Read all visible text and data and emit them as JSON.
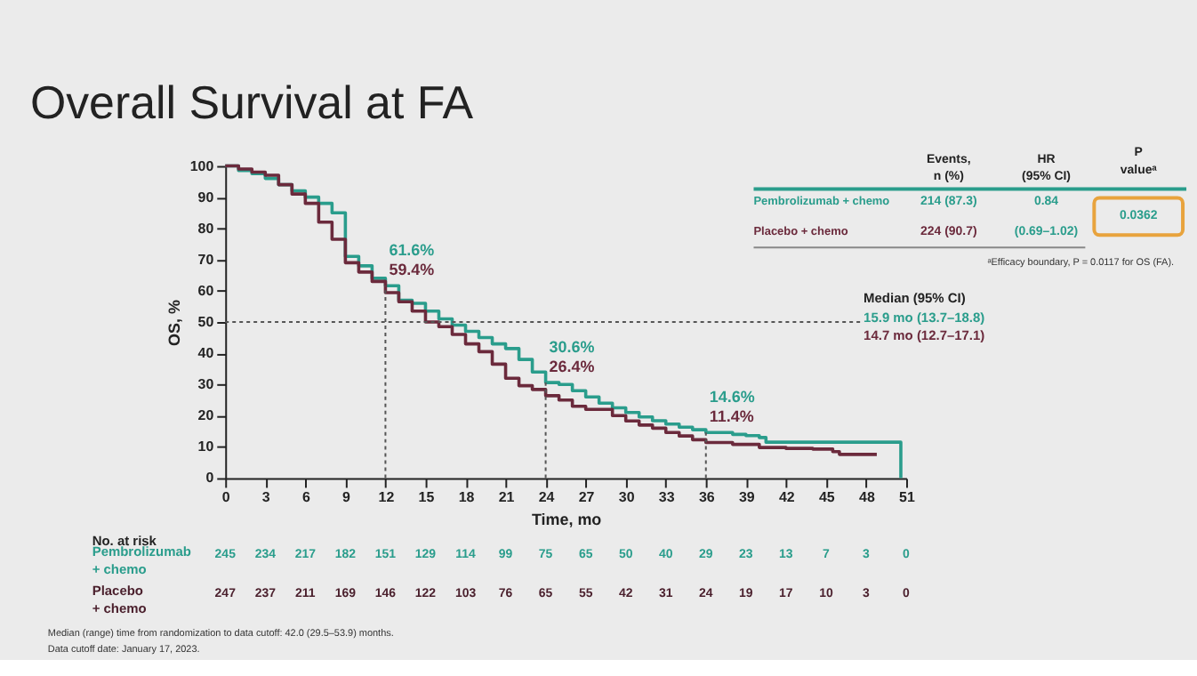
{
  "chart_data": {
    "type": "step",
    "title": "Overall Survival at FA",
    "xlabel": "Time, mo",
    "ylabel": "OS, %",
    "xlim": [
      0,
      51
    ],
    "ylim": [
      0,
      100
    ],
    "xticks": [
      0,
      3,
      6,
      9,
      12,
      15,
      18,
      21,
      24,
      27,
      30,
      33,
      36,
      39,
      42,
      45,
      48,
      51
    ],
    "yticks": [
      0,
      10,
      20,
      30,
      40,
      50,
      60,
      70,
      80,
      90,
      100
    ],
    "grid": false,
    "legend": "top right",
    "marker": "none",
    "line_style": "solid",
    "series": [
      {
        "name": "Pembrolizumab + chemo",
        "color": "#2a9d8c",
        "x": [
          0,
          1,
          2,
          3,
          4,
          5,
          6,
          7,
          8,
          9,
          10,
          11,
          12,
          13,
          14,
          15,
          16,
          17,
          18,
          19,
          20,
          21,
          22,
          23,
          24,
          25,
          26,
          27,
          28,
          29,
          30,
          31,
          32,
          33,
          34,
          35,
          36,
          37,
          38,
          39,
          40,
          40.5,
          50.6,
          50.6
        ],
        "values": [
          100,
          98.5,
          97.5,
          96,
          94,
          92,
          90,
          88,
          85,
          71,
          68,
          64,
          61.6,
          57,
          56,
          53.5,
          51,
          49,
          47,
          45,
          43,
          41.5,
          38,
          34,
          30.6,
          30,
          28,
          26,
          24,
          22.5,
          21,
          19.6,
          18.4,
          17.3,
          16.3,
          15.5,
          14.6,
          14.6,
          14,
          13.6,
          13,
          11.5,
          11.5,
          0
        ]
      },
      {
        "name": "Placebo + chemo",
        "color": "#6b2a3c",
        "x": [
          0,
          1,
          2,
          3,
          4,
          5,
          6,
          7,
          8,
          9,
          10,
          11,
          12,
          13,
          14,
          15,
          16,
          17,
          18,
          19,
          20,
          21,
          22,
          23,
          24,
          25,
          26,
          27,
          28,
          29,
          30,
          31,
          32,
          33,
          34,
          35,
          36,
          38,
          40,
          42,
          44,
          45.5,
          46,
          48.8
        ],
        "values": [
          100,
          99,
          98,
          97,
          94,
          91,
          88,
          82,
          76.5,
          69,
          66,
          63,
          59.4,
          56.5,
          53.5,
          50,
          48.5,
          46,
          43,
          40.5,
          36.5,
          32,
          29.6,
          28.4,
          26.4,
          25,
          23,
          22,
          22,
          20,
          18.3,
          17,
          16,
          14.6,
          13.5,
          12.3,
          11.4,
          10.8,
          9.8,
          9.5,
          9.3,
          8.5,
          7.6,
          7.6
        ]
      }
    ],
    "ref_lines": [
      {
        "axis": "y",
        "value": 50,
        "color": "#555555",
        "line_style": "dotted"
      },
      {
        "axis": "x",
        "value": 12,
        "color": "#555555",
        "line_style": "dotted"
      },
      {
        "axis": "x",
        "value": 24,
        "color": "#555555",
        "line_style": "dotted"
      },
      {
        "axis": "x",
        "value": 36,
        "color": "#555555",
        "line_style": "dotted"
      }
    ],
    "annotations": [
      "Events,\nn (%)",
      "HR\n(95% CI)",
      "P\nvalueᵃ",
      "214 (87.3)",
      "224 (90.7)",
      "0.84\n(0.69–1.02)",
      "0.0362",
      "ᵃEfficacy boundary, P = 0.0117 for OS (FA).",
      "Median (95% CI)",
      "15.9 mo (13.7–18.8)",
      "14.7 mo (12.7–17.1)",
      "No. at risk",
      "Pembrolizumab\n+ chemo",
      "245",
      "234",
      "217",
      "182",
      "151",
      "129",
      "114",
      "99",
      "75",
      "65",
      "50",
      "40",
      "29",
      "23",
      "13",
      "7",
      "3",
      "0",
      "Placebo\n+ chemo",
      "247",
      "237",
      "211",
      "169",
      "146",
      "122",
      "103",
      "76",
      "65",
      "55",
      "42",
      "31",
      "24",
      "19",
      "17",
      "10",
      "3",
      "0",
      "Median (range) time from randomization to data cutoff: 42.0 (29.5–53.9) months.",
      "Data cutoff date: January 17, 2023.",
      {
        "text": "61.6%",
        "x": 12,
        "y": 61.6
      },
      {
        "text": "59.4%",
        "x": 12,
        "y": 59.4
      },
      {
        "text": "30.6%",
        "x": 24,
        "y": 30.6
      },
      {
        "text": "26.4%",
        "x": 24,
        "y": 26.4
      },
      {
        "text": "14.6%",
        "x": 36,
        "y": 14.6
      },
      {
        "text": "11.4%",
        "x": 36,
        "y": 11.4
      }
    ]
  }
}
